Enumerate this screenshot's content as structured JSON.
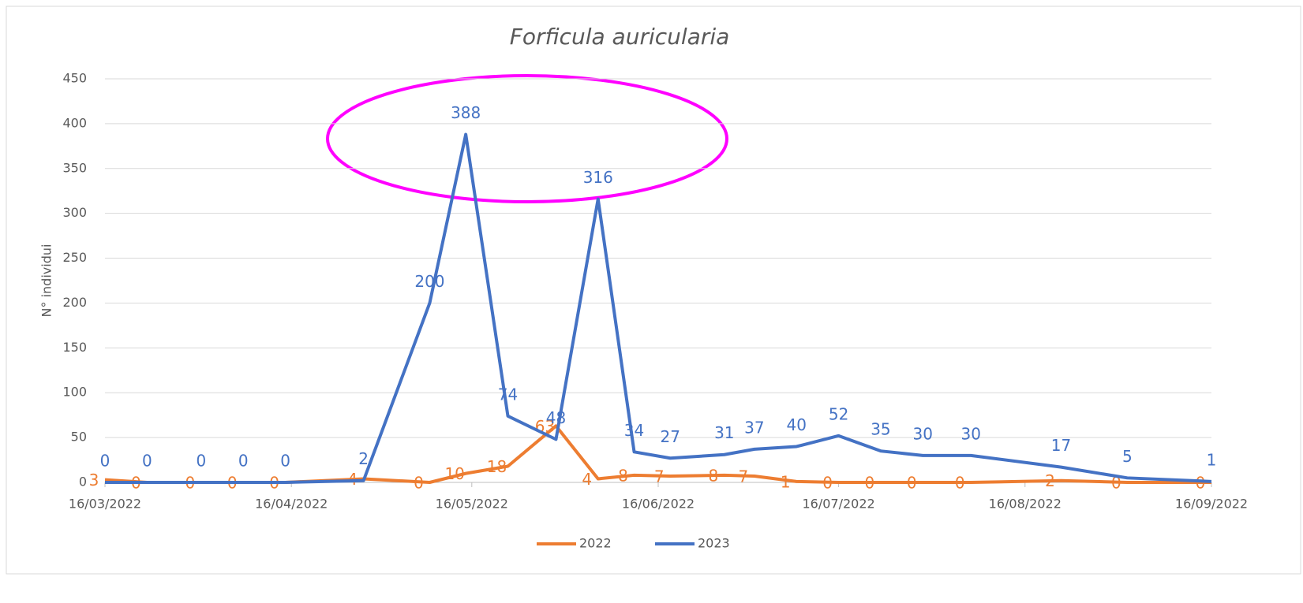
{
  "chart_data": {
    "type": "line",
    "title": "Forficula auricularia",
    "y_label": "N° individui",
    "x": [
      "16/03/2022",
      "23/03/2022",
      "01/04/2022",
      "08/04/2022",
      "15/04/2022",
      "28/04/2022",
      "09/05/2022",
      "15/05/2022",
      "22/05/2022",
      "30/05/2022",
      "06/06/2022",
      "12/06/2022",
      "18/06/2022",
      "27/06/2022",
      "02/07/2022",
      "09/07/2022",
      "16/07/2022",
      "23/07/2022",
      "30/07/2022",
      "07/08/2022",
      "22/08/2022",
      "02/09/2022",
      "16/09/2022"
    ],
    "series": [
      {
        "name": "2022",
        "color": "#ed7d31",
        "values": [
          3,
          0,
          0,
          0,
          0,
          4,
          0,
          10,
          18,
          63,
          4,
          8,
          7,
          8,
          7,
          1,
          0,
          0,
          0,
          0,
          2,
          0,
          0
        ]
      },
      {
        "name": "2023",
        "color": "#4472c4",
        "values": [
          0,
          0,
          0,
          0,
          0,
          2,
          200,
          388,
          74,
          48,
          316,
          34,
          27,
          31,
          37,
          40,
          52,
          35,
          30,
          30,
          17,
          5,
          1
        ]
      }
    ],
    "xlim": [
      "16/03/2022",
      "16/09/2022"
    ],
    "xticks": [
      "16/03/2022",
      "16/04/2022",
      "16/05/2022",
      "16/06/2022",
      "16/07/2022",
      "16/08/2022",
      "16/09/2022"
    ],
    "ylim": [
      0,
      450
    ],
    "yticks": [
      0,
      50,
      100,
      150,
      200,
      250,
      300,
      350,
      400,
      450
    ],
    "grid": true,
    "legend": "bottom"
  }
}
